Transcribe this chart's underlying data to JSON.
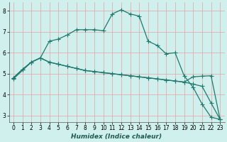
{
  "xlabel": "Humidex (Indice chaleur)",
  "bg_color": "#cff0ec",
  "grid_color": "#e8a0a0",
  "line_color": "#1e7a6e",
  "xlim": [
    -0.5,
    23.5
  ],
  "ylim": [
    2.7,
    8.4
  ],
  "xticks": [
    0,
    1,
    2,
    3,
    4,
    5,
    6,
    7,
    8,
    9,
    10,
    11,
    12,
    13,
    14,
    15,
    16,
    17,
    18,
    19,
    20,
    21,
    22,
    23
  ],
  "yticks": [
    3,
    4,
    5,
    6,
    7,
    8
  ],
  "line1_x": [
    0,
    1,
    2,
    3,
    4,
    5,
    6,
    7,
    8,
    9,
    10,
    11,
    12,
    13,
    14,
    15,
    16,
    17,
    18,
    19,
    20,
    21,
    22,
    23
  ],
  "line1_y": [
    4.8,
    5.2,
    5.55,
    5.75,
    5.55,
    5.45,
    5.35,
    5.25,
    5.15,
    5.1,
    5.05,
    5.0,
    4.95,
    4.9,
    4.85,
    4.8,
    4.75,
    4.7,
    4.65,
    4.6,
    4.85,
    4.88,
    4.9,
    2.82
  ],
  "line2_x": [
    0,
    1,
    2,
    3,
    4,
    5,
    6,
    7,
    8,
    9,
    10,
    11,
    12,
    13,
    14,
    15,
    16,
    17,
    18,
    19,
    20,
    21,
    22,
    23
  ],
  "line2_y": [
    4.8,
    5.2,
    5.55,
    5.75,
    5.55,
    5.45,
    5.35,
    5.25,
    5.15,
    5.1,
    5.05,
    5.0,
    4.95,
    4.9,
    4.85,
    4.8,
    4.75,
    4.7,
    4.65,
    4.6,
    4.5,
    4.4,
    3.6,
    2.82
  ],
  "line3_x": [
    0,
    2,
    3,
    4,
    5,
    6,
    7,
    8,
    9,
    10,
    11,
    12,
    13,
    14,
    15,
    16,
    17,
    18,
    19,
    20,
    21,
    22,
    23
  ],
  "line3_y": [
    4.75,
    5.55,
    5.75,
    6.55,
    6.65,
    6.85,
    7.1,
    7.1,
    7.1,
    7.05,
    7.85,
    8.05,
    7.85,
    7.75,
    6.55,
    6.35,
    5.95,
    6.0,
    4.9,
    4.35,
    3.55,
    2.92,
    2.82
  ]
}
